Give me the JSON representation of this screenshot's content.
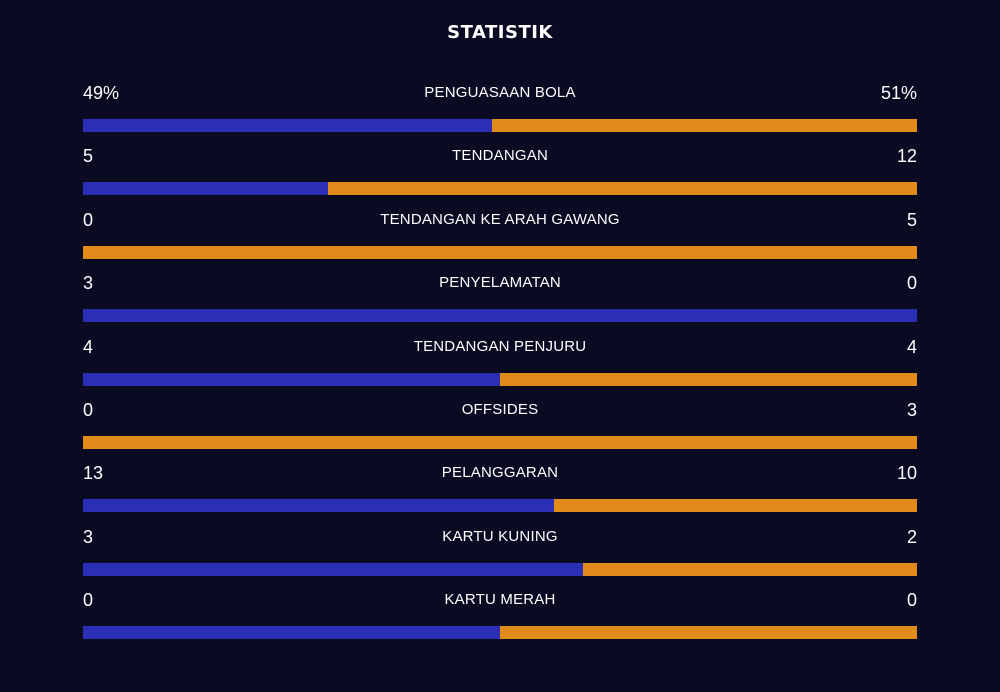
{
  "title": "STATISTIK",
  "colors": {
    "background": "#0a0a23",
    "home": "#2a2fb5",
    "away": "#e08b1a",
    "text": "#ffffff"
  },
  "stats": [
    {
      "label": "PENGUASAAN BOLA",
      "home": "49%",
      "away": "51%",
      "home_share": 0.49
    },
    {
      "label": "TENDANGAN",
      "home": "5",
      "away": "12",
      "home_share": 0.294
    },
    {
      "label": "TENDANGAN KE ARAH GAWANG",
      "home": "0",
      "away": "5",
      "home_share": 0.0
    },
    {
      "label": "PENYELAMATAN",
      "home": "3",
      "away": "0",
      "home_share": 1.0
    },
    {
      "label": "TENDANGAN PENJURU",
      "home": "4",
      "away": "4",
      "home_share": 0.5
    },
    {
      "label": "OFFSIDES",
      "home": "0",
      "away": "3",
      "home_share": 0.0
    },
    {
      "label": "PELANGGARAN",
      "home": "13",
      "away": "10",
      "home_share": 0.565
    },
    {
      "label": "KARTU KUNING",
      "home": "3",
      "away": "2",
      "home_share": 0.6
    },
    {
      "label": "KARTU MERAH",
      "home": "0",
      "away": "0",
      "home_share": 0.5
    }
  ]
}
